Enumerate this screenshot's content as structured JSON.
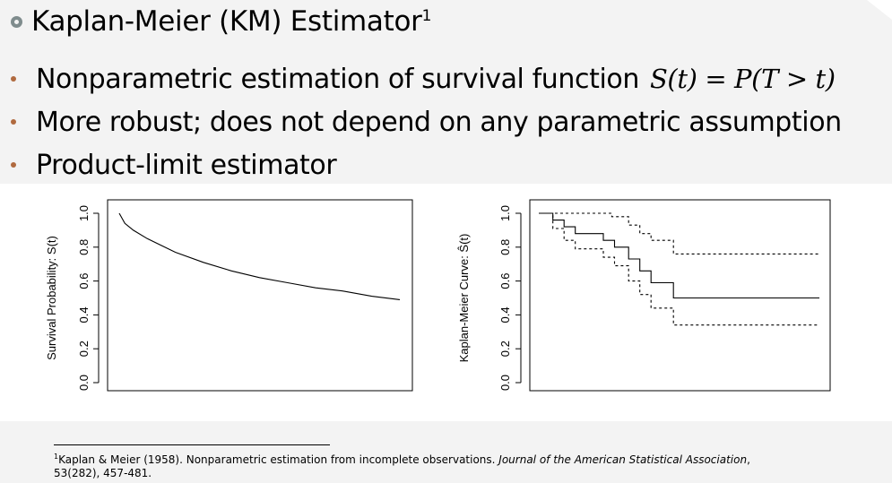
{
  "slide": {
    "title": "Kaplan-Meier (KM) Estimator",
    "title_superscript": "1",
    "bullets": [
      {
        "text": "Nonparametric estimation of survival function",
        "math": "S(t) = P(T > t)"
      },
      {
        "text": "More robust; does not depend on any parametric assumption"
      },
      {
        "text": "Product-limit estimator"
      }
    ],
    "footnote": {
      "marker": "1",
      "text_before": "Kaplan & Meier (1958). Nonparametric estimation from incomplete observations. ",
      "journal": "Journal of the American Statistical Association",
      "text_after": ",",
      "line2": "53(282), 457-481."
    },
    "colors": {
      "bullet_dot": "#b06a3f",
      "title_marker": "#7f8c8d"
    }
  },
  "chart_data": [
    {
      "type": "line",
      "ylabel": "Survival Probability: S(t)",
      "xlabel": "",
      "ylim": [
        0,
        1
      ],
      "yticks": [
        "0.0",
        "0.2",
        "0.4",
        "0.6",
        "0.8",
        "1.0"
      ],
      "series": [
        {
          "x": [
            0.0,
            0.02,
            0.05,
            0.1,
            0.15,
            0.2,
            0.3,
            0.4,
            0.5,
            0.6,
            0.7,
            0.8,
            0.9,
            1.0
          ],
          "y": [
            1.0,
            0.94,
            0.9,
            0.85,
            0.81,
            0.77,
            0.71,
            0.66,
            0.62,
            0.59,
            0.56,
            0.54,
            0.51,
            0.49
          ]
        }
      ]
    },
    {
      "type": "line",
      "ylabel": "Kaplan-Meier Curve: Ŝ(t)",
      "xlabel": "",
      "ylim": [
        0,
        1
      ],
      "yticks": [
        "0.0",
        "0.2",
        "0.4",
        "0.6",
        "0.8",
        "1.0"
      ],
      "series": [
        {
          "style": "solid",
          "x": [
            0,
            0.05,
            0.05,
            0.09,
            0.09,
            0.13,
            0.13,
            0.23,
            0.23,
            0.27,
            0.27,
            0.32,
            0.32,
            0.36,
            0.36,
            0.4,
            0.4,
            0.48,
            0.48,
            1.0
          ],
          "y": [
            1.0,
            1.0,
            0.96,
            0.96,
            0.92,
            0.92,
            0.88,
            0.88,
            0.84,
            0.84,
            0.8,
            0.8,
            0.73,
            0.73,
            0.66,
            0.66,
            0.59,
            0.59,
            0.5,
            0.5
          ]
        },
        {
          "style": "dashed",
          "x": [
            0,
            0.26,
            0.26,
            0.32,
            0.32,
            0.36,
            0.36,
            0.4,
            0.4,
            0.48,
            0.48,
            1.0
          ],
          "y": [
            1.0,
            1.0,
            0.98,
            0.98,
            0.93,
            0.93,
            0.88,
            0.88,
            0.84,
            0.84,
            0.76,
            0.76
          ]
        },
        {
          "style": "dashed",
          "x": [
            0,
            0.05,
            0.05,
            0.09,
            0.09,
            0.13,
            0.13,
            0.23,
            0.23,
            0.27,
            0.27,
            0.32,
            0.32,
            0.36,
            0.36,
            0.4,
            0.4,
            0.48,
            0.48,
            1.0
          ],
          "y": [
            1.0,
            1.0,
            0.91,
            0.91,
            0.84,
            0.84,
            0.79,
            0.79,
            0.74,
            0.74,
            0.69,
            0.69,
            0.6,
            0.6,
            0.52,
            0.52,
            0.44,
            0.44,
            0.34,
            0.34
          ]
        }
      ]
    }
  ]
}
